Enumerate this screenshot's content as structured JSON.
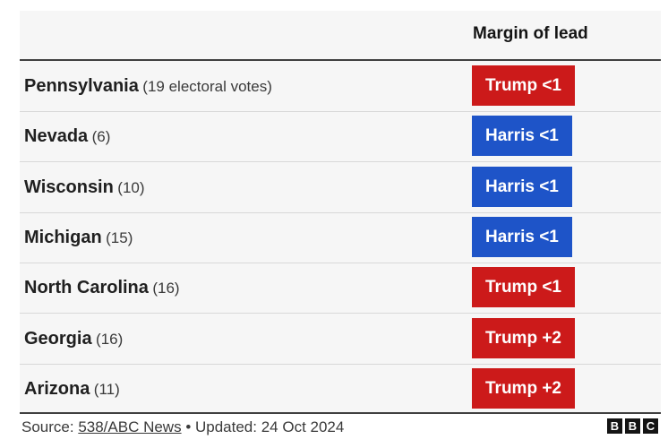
{
  "header": {
    "margin_label": "Margin of lead"
  },
  "colors": {
    "trump": "#cc1a1a",
    "harris": "#1e54c8"
  },
  "chart_data": {
    "type": "table",
    "columns": [
      "",
      "Margin of lead"
    ],
    "rows": [
      {
        "state": "Pennsylvania",
        "votes": "(19 electoral votes)",
        "leader": "trump",
        "margin": "Trump <1"
      },
      {
        "state": "Nevada",
        "votes": "(6)",
        "leader": "harris",
        "margin": "Harris <1"
      },
      {
        "state": "Wisconsin",
        "votes": "(10)",
        "leader": "harris",
        "margin": "Harris <1"
      },
      {
        "state": "Michigan",
        "votes": "(15)",
        "leader": "harris",
        "margin": "Harris <1"
      },
      {
        "state": "North Carolina",
        "votes": "(16)",
        "leader": "trump",
        "margin": "Trump <1"
      },
      {
        "state": "Georgia",
        "votes": "(16)",
        "leader": "trump",
        "margin": "Trump +2"
      },
      {
        "state": "Arizona",
        "votes": "(11)",
        "leader": "trump",
        "margin": "Trump +2"
      }
    ]
  },
  "footer": {
    "source_prefix": "Source: ",
    "source_link": "538/ABC News",
    "updated": " • Updated: 24 Oct 2024"
  },
  "logo": {
    "letters": [
      "B",
      "B",
      "C"
    ]
  }
}
